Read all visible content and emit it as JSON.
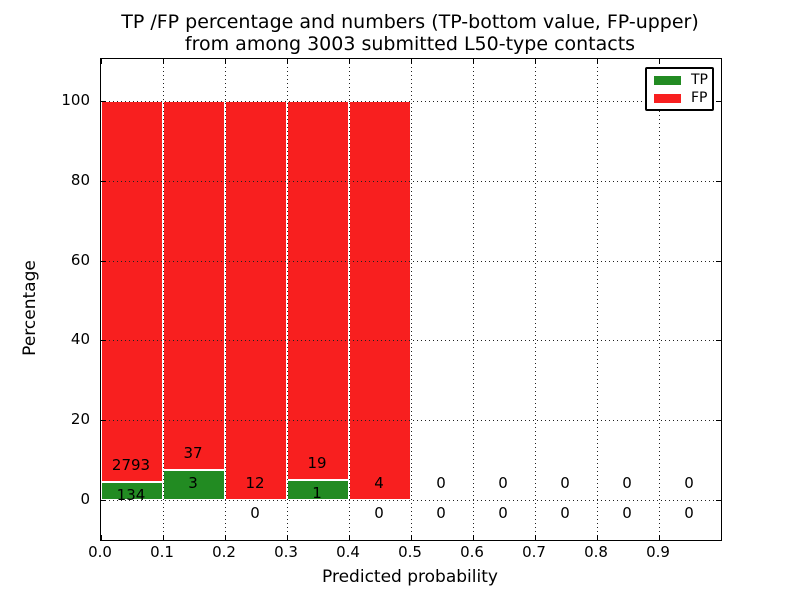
{
  "title": {
    "line1": "TP /FP percentage and numbers (TP-bottom value, FP-upper)",
    "line2": "from among 3003 submitted L50-type contacts"
  },
  "axes": {
    "xlabel": "Predicted probability",
    "ylabel": "Percentage",
    "xtick_labels": [
      "0.0",
      "0.1",
      "0.2",
      "0.3",
      "0.4",
      "0.5",
      "0.6",
      "0.7",
      "0.8",
      "0.9"
    ],
    "xtick_values": [
      0.0,
      0.1,
      0.2,
      0.3,
      0.4,
      0.5,
      0.6,
      0.7,
      0.8,
      0.9
    ],
    "ytick_labels": [
      "0",
      "20",
      "40",
      "60",
      "80",
      "100"
    ],
    "ytick_values": [
      0,
      20,
      40,
      60,
      80,
      100
    ],
    "xlim": [
      0.0,
      1.0
    ],
    "ylim": [
      -10,
      110.5
    ],
    "grid_style": "dotted"
  },
  "legend": {
    "position": "upper right",
    "entries": [
      {
        "label": "TP",
        "color": "#228b22"
      },
      {
        "label": "FP",
        "color": "#f81f1f"
      }
    ]
  },
  "chart_data": {
    "type": "bar",
    "stacked": true,
    "orientation": "vertical",
    "title": "TP /FP percentage and numbers (TP-bottom value, FP-upper) from among 3003 submitted L50-type contacts",
    "xlabel": "Predicted probability",
    "ylabel": "Percentage",
    "total_submitted": 3003,
    "bin_width": 0.1,
    "bin_starts": [
      0.0,
      0.1,
      0.2,
      0.3,
      0.4,
      0.5,
      0.6,
      0.7,
      0.8,
      0.9
    ],
    "categories": [
      "0.0-0.1",
      "0.1-0.2",
      "0.2-0.3",
      "0.3-0.4",
      "0.4-0.5",
      "0.5-0.6",
      "0.6-0.7",
      "0.7-0.8",
      "0.8-0.9",
      "0.9-1.0"
    ],
    "series": [
      {
        "name": "TP",
        "color": "#228b22",
        "counts": [
          134,
          3,
          0,
          1,
          0,
          0,
          0,
          0,
          0,
          0
        ]
      },
      {
        "name": "FP",
        "color": "#f81f1f",
        "counts": [
          2793,
          37,
          12,
          19,
          4,
          0,
          0,
          0,
          0,
          0
        ]
      }
    ],
    "bar_height_rule": "TP percent = TP/(TP+FP)*100 per bin, stacked with FP to 100%",
    "xlim": [
      0.0,
      1.0
    ],
    "ylim": [
      -10,
      110.5
    ],
    "legend_position": "upper right",
    "grid": "dotted"
  }
}
